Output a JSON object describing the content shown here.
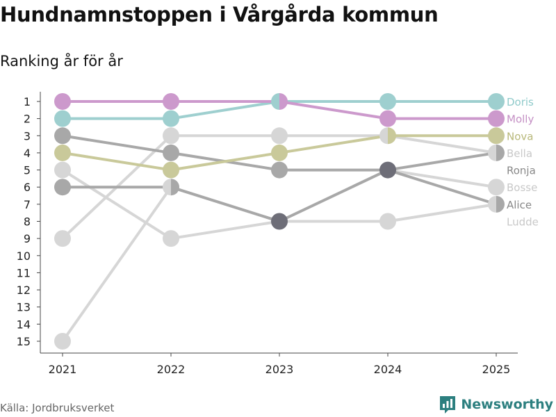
{
  "title": "Hundnamnstoppen i Vårgårda kommun",
  "subtitle": "Ranking år för år",
  "source": "Källa: Jordbruksverket",
  "brand": "Newsworthy",
  "chart_data": {
    "type": "line",
    "title": "Hundnamnstoppen i Vårgårda kommun",
    "subtitle": "Ranking år för år",
    "x": [
      "2021",
      "2022",
      "2023",
      "2024",
      "2025"
    ],
    "y_ticks": [
      "1",
      "2",
      "3",
      "4",
      "5",
      "6",
      "7",
      "8",
      "9",
      "10",
      "11",
      "12",
      "13",
      "14",
      "15"
    ],
    "ylim": [
      1,
      15
    ],
    "y_inverted": true,
    "xlabel": "",
    "ylabel": "",
    "series": [
      {
        "name": "Ludde",
        "color": "#d6d6d6",
        "values": [
          15,
          6,
          8,
          8,
          7
        ]
      },
      {
        "name": "Bosse",
        "color": "#d6d6d6",
        "values": [
          5,
          9,
          8,
          5,
          6
        ]
      },
      {
        "name": "Bella",
        "color": "#d6d6d6",
        "values": [
          9,
          3,
          3,
          3,
          4
        ]
      },
      {
        "name": "Alice",
        "color": "#a8a8a8",
        "values": [
          6,
          6,
          8,
          5,
          7
        ]
      },
      {
        "name": "Ronja",
        "color": "#a8a8a8",
        "values": [
          3,
          4,
          5,
          5,
          4
        ]
      },
      {
        "name": "Nova",
        "color": "#c9c99a",
        "values": [
          4,
          5,
          4,
          3,
          3
        ]
      },
      {
        "name": "Doris",
        "color": "#9ecfcf",
        "values": [
          2,
          2,
          1,
          1,
          1
        ]
      },
      {
        "name": "Molly",
        "color": "#cc99cc",
        "values": [
          1,
          1,
          1,
          2,
          2
        ]
      }
    ],
    "end_labels": [
      {
        "name": "Doris",
        "color": "#8fcaca"
      },
      {
        "name": "Molly",
        "color": "#c48fc4"
      },
      {
        "name": "Nova",
        "color": "#b8b87a"
      },
      {
        "name": "Bella",
        "color": "#c8c8c8"
      },
      {
        "name": "Ronja",
        "color": "#888888"
      },
      {
        "name": "Bosse",
        "color": "#c8c8c8"
      },
      {
        "name": "Alice",
        "color": "#888888"
      },
      {
        "name": "Ludde",
        "color": "#c8c8c8"
      }
    ],
    "dark_marker_color": "#6e6e78"
  }
}
